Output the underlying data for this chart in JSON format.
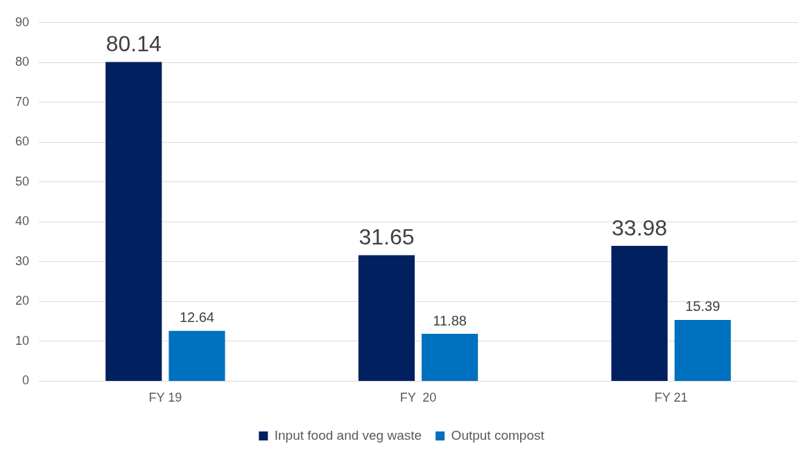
{
  "chart_data": {
    "type": "bar",
    "categories": [
      "FY 19",
      "FY  20",
      "FY 21"
    ],
    "series": [
      {
        "name": "Input food and veg waste",
        "color": "#002060",
        "values": [
          80.14,
          31.65,
          33.98
        ]
      },
      {
        "name": "Output compost",
        "color": "#0070c0",
        "values": [
          12.64,
          11.88,
          15.39
        ]
      }
    ],
    "ylim": [
      0,
      90
    ],
    "yticks": [
      0,
      10,
      20,
      30,
      40,
      50,
      60,
      70,
      80,
      90
    ],
    "grid": "y",
    "legend": "bottom",
    "data_labels": true
  }
}
